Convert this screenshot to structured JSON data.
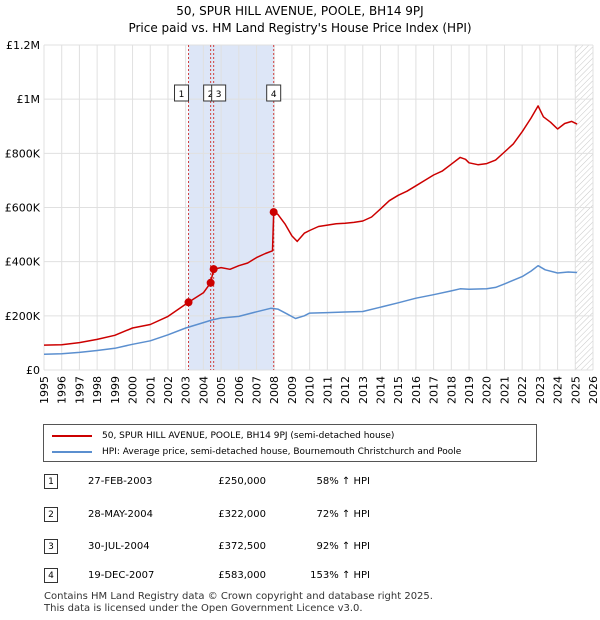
{
  "title": {
    "line1": "50, SPUR HILL AVENUE, POOLE, BH14 9PJ",
    "line2": "Price paid vs. HM Land Registry's House Price Index (HPI)"
  },
  "colors": {
    "red": "#cc0000",
    "blue": "#5b8fcf",
    "shade": "#dde6f7",
    "grid": "#e0e0e0"
  },
  "chart_data": {
    "type": "line",
    "xlim": [
      1995,
      2026
    ],
    "ylim": [
      0,
      1200000
    ],
    "y_ticks": [
      {
        "value": 0,
        "label": "£0"
      },
      {
        "value": 200000,
        "label": "£200K"
      },
      {
        "value": 400000,
        "label": "£400K"
      },
      {
        "value": 600000,
        "label": "£600K"
      },
      {
        "value": 800000,
        "label": "£800K"
      },
      {
        "value": 1000000,
        "label": "£1M"
      },
      {
        "value": 1200000,
        "label": "£1.2M"
      }
    ],
    "x_ticks": [
      "1995",
      "1996",
      "1997",
      "1998",
      "1999",
      "2000",
      "2001",
      "2002",
      "2003",
      "2004",
      "2005",
      "2006",
      "2007",
      "2008",
      "2009",
      "2010",
      "2011",
      "2012",
      "2013",
      "2014",
      "2015",
      "2016",
      "2017",
      "2018",
      "2019",
      "2020",
      "2021",
      "2022",
      "2023",
      "2024",
      "2025",
      "2026"
    ],
    "shaded_range": [
      2003.16,
      2007.97
    ],
    "forecast_start": 2025.0,
    "series": [
      {
        "name": "50, SPUR HILL AVENUE, POOLE, BH14 9PJ (semi-detached house)",
        "color": "#cc0000",
        "points": [
          [
            1995.0,
            92000
          ],
          [
            1996.0,
            93000
          ],
          [
            1997.0,
            101000
          ],
          [
            1998.0,
            113000
          ],
          [
            1999.0,
            128000
          ],
          [
            2000.0,
            155000
          ],
          [
            2001.0,
            168000
          ],
          [
            2002.0,
            198000
          ],
          [
            2003.16,
            250000
          ],
          [
            2004.0,
            285000
          ],
          [
            2004.41,
            322000
          ],
          [
            2004.58,
            372500
          ],
          [
            2005.0,
            378000
          ],
          [
            2005.5,
            372000
          ],
          [
            2006.0,
            385000
          ],
          [
            2006.5,
            395000
          ],
          [
            2007.0,
            415000
          ],
          [
            2007.5,
            430000
          ],
          [
            2007.9,
            440000
          ],
          [
            2007.97,
            583000
          ],
          [
            2008.2,
            575000
          ],
          [
            2008.6,
            540000
          ],
          [
            2009.0,
            495000
          ],
          [
            2009.3,
            475000
          ],
          [
            2009.7,
            505000
          ],
          [
            2010.0,
            515000
          ],
          [
            2010.5,
            530000
          ],
          [
            2011.0,
            535000
          ],
          [
            2011.5,
            540000
          ],
          [
            2012.0,
            542000
          ],
          [
            2012.5,
            545000
          ],
          [
            2013.0,
            550000
          ],
          [
            2013.5,
            565000
          ],
          [
            2014.0,
            595000
          ],
          [
            2014.5,
            625000
          ],
          [
            2015.0,
            645000
          ],
          [
            2015.5,
            660000
          ],
          [
            2016.0,
            680000
          ],
          [
            2016.5,
            700000
          ],
          [
            2017.0,
            720000
          ],
          [
            2017.5,
            735000
          ],
          [
            2018.0,
            760000
          ],
          [
            2018.5,
            785000
          ],
          [
            2018.8,
            778000
          ],
          [
            2019.0,
            765000
          ],
          [
            2019.5,
            758000
          ],
          [
            2020.0,
            762000
          ],
          [
            2020.5,
            775000
          ],
          [
            2021.0,
            805000
          ],
          [
            2021.5,
            835000
          ],
          [
            2022.0,
            880000
          ],
          [
            2022.5,
            930000
          ],
          [
            2022.9,
            975000
          ],
          [
            2023.2,
            935000
          ],
          [
            2023.6,
            915000
          ],
          [
            2024.0,
            890000
          ],
          [
            2024.4,
            910000
          ],
          [
            2024.8,
            918000
          ],
          [
            2025.1,
            908000
          ]
        ]
      },
      {
        "name": "HPI: Average price, semi-detached house, Bournemouth Christchurch and Poole",
        "color": "#5b8fcf",
        "points": [
          [
            1995.0,
            58000
          ],
          [
            1996.0,
            60000
          ],
          [
            1997.0,
            65000
          ],
          [
            1998.0,
            72000
          ],
          [
            1999.0,
            80000
          ],
          [
            2000.0,
            95000
          ],
          [
            2001.0,
            108000
          ],
          [
            2002.0,
            130000
          ],
          [
            2003.0,
            155000
          ],
          [
            2004.0,
            175000
          ],
          [
            2004.5,
            185000
          ],
          [
            2005.0,
            192000
          ],
          [
            2006.0,
            198000
          ],
          [
            2007.0,
            215000
          ],
          [
            2007.8,
            228000
          ],
          [
            2008.2,
            225000
          ],
          [
            2008.7,
            208000
          ],
          [
            2009.2,
            190000
          ],
          [
            2009.7,
            200000
          ],
          [
            2010.0,
            210000
          ],
          [
            2011.0,
            212000
          ],
          [
            2012.0,
            214000
          ],
          [
            2013.0,
            216000
          ],
          [
            2014.0,
            232000
          ],
          [
            2015.0,
            248000
          ],
          [
            2016.0,
            265000
          ],
          [
            2017.0,
            278000
          ],
          [
            2018.0,
            292000
          ],
          [
            2018.5,
            300000
          ],
          [
            2019.0,
            298000
          ],
          [
            2020.0,
            300000
          ],
          [
            2020.5,
            305000
          ],
          [
            2021.0,
            318000
          ],
          [
            2022.0,
            345000
          ],
          [
            2022.5,
            365000
          ],
          [
            2022.9,
            385000
          ],
          [
            2023.3,
            370000
          ],
          [
            2024.0,
            358000
          ],
          [
            2024.6,
            362000
          ],
          [
            2025.1,
            360000
          ]
        ]
      }
    ],
    "sales": [
      {
        "id": "1",
        "x": 2003.16,
        "value": 250000
      },
      {
        "id": "2",
        "x": 2004.41,
        "value": 322000
      },
      {
        "id": "3",
        "x": 2004.58,
        "value": 372500
      },
      {
        "id": "4",
        "x": 2007.97,
        "value": 583000
      }
    ]
  },
  "legend": {
    "red_label": "50, SPUR HILL AVENUE, POOLE, BH14 9PJ (semi-detached house)",
    "blue_label": "HPI: Average price, semi-detached house, Bournemouth Christchurch and Poole"
  },
  "transactions": [
    {
      "num": "1",
      "date": "27-FEB-2003",
      "price": "£250,000",
      "hpi": "58% ↑ HPI"
    },
    {
      "num": "2",
      "date": "28-MAY-2004",
      "price": "£322,000",
      "hpi": "72% ↑ HPI"
    },
    {
      "num": "3",
      "date": "30-JUL-2004",
      "price": "£372,500",
      "hpi": "92% ↑ HPI"
    },
    {
      "num": "4",
      "date": "19-DEC-2007",
      "price": "£583,000",
      "hpi": "153% ↑ HPI"
    }
  ],
  "footer": {
    "line1": "Contains HM Land Registry data © Crown copyright and database right 2025.",
    "line2": "This data is licensed under the Open Government Licence v3.0."
  }
}
